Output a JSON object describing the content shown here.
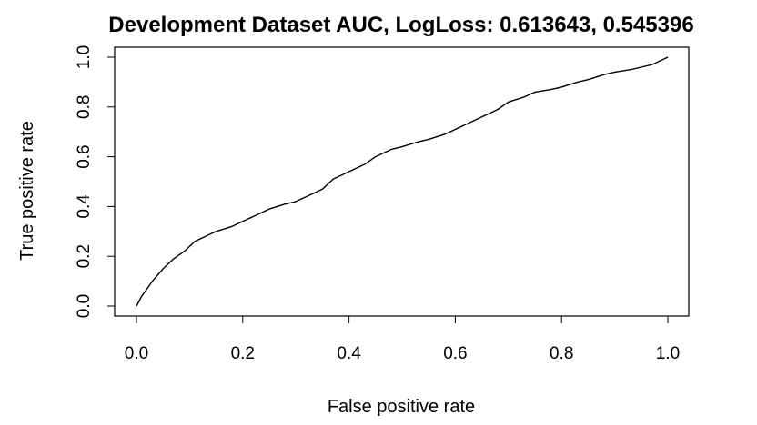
{
  "chart_data": {
    "type": "line",
    "title": "Development Dataset AUC, LogLoss: 0.613643, 0.545396",
    "xlabel": "False positive rate",
    "ylabel": "True positive rate",
    "xlim": [
      0,
      1
    ],
    "ylim": [
      0,
      1
    ],
    "grid": false,
    "line_color": "#000000",
    "xticks": [
      0.0,
      0.2,
      0.4,
      0.6,
      0.8,
      1.0
    ],
    "xtick_labels": [
      "0.0",
      "0.2",
      "0.4",
      "0.6",
      "0.8",
      "1.0"
    ],
    "yticks": [
      0.0,
      0.2,
      0.4,
      0.6,
      0.8,
      1.0
    ],
    "ytick_labels": [
      "0.0",
      "0.2",
      "0.4",
      "0.6",
      "0.8",
      "1.0"
    ],
    "series": [
      {
        "x": [
          0.0,
          0.005,
          0.01,
          0.02,
          0.03,
          0.05,
          0.07,
          0.09,
          0.11,
          0.13,
          0.15,
          0.18,
          0.2,
          0.22,
          0.25,
          0.28,
          0.3,
          0.33,
          0.35,
          0.37,
          0.4,
          0.43,
          0.45,
          0.48,
          0.5,
          0.53,
          0.55,
          0.58,
          0.6,
          0.63,
          0.65,
          0.68,
          0.7,
          0.73,
          0.75,
          0.78,
          0.8,
          0.83,
          0.85,
          0.88,
          0.9,
          0.93,
          0.95,
          0.97,
          0.99,
          1.0
        ],
        "y": [
          0.0,
          0.02,
          0.04,
          0.07,
          0.1,
          0.15,
          0.19,
          0.22,
          0.26,
          0.28,
          0.3,
          0.32,
          0.34,
          0.36,
          0.39,
          0.41,
          0.42,
          0.45,
          0.47,
          0.51,
          0.54,
          0.57,
          0.6,
          0.63,
          0.64,
          0.66,
          0.67,
          0.69,
          0.71,
          0.74,
          0.76,
          0.79,
          0.82,
          0.84,
          0.86,
          0.87,
          0.88,
          0.9,
          0.91,
          0.93,
          0.94,
          0.95,
          0.96,
          0.97,
          0.99,
          1.0
        ]
      }
    ]
  }
}
